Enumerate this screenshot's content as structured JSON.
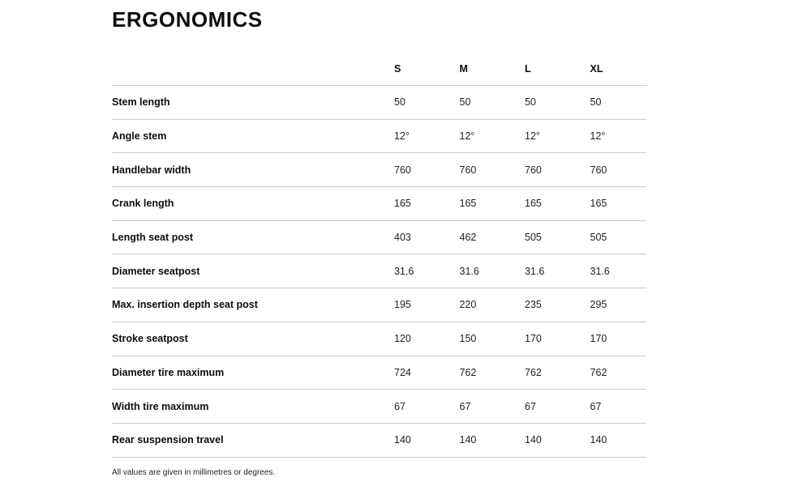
{
  "page": {
    "title": "ERGONOMICS",
    "footnote": "All values are given in millimetres or degrees."
  },
  "table": {
    "columns": [
      "S",
      "M",
      "L",
      "XL"
    ],
    "rows": [
      {
        "label": "Stem length",
        "values": [
          "50",
          "50",
          "50",
          "50"
        ]
      },
      {
        "label": "Angle stem",
        "values": [
          "12°",
          "12°",
          "12°",
          "12°"
        ]
      },
      {
        "label": "Handlebar width",
        "values": [
          "760",
          "760",
          "760",
          "760"
        ]
      },
      {
        "label": "Crank length",
        "values": [
          "165",
          "165",
          "165",
          "165"
        ]
      },
      {
        "label": "Length seat post",
        "values": [
          "403",
          "462",
          "505",
          "505"
        ]
      },
      {
        "label": "Diameter seatpost",
        "values": [
          "31.6",
          "31.6",
          "31.6",
          "31.6"
        ]
      },
      {
        "label": "Max. insertion depth seat post",
        "values": [
          "195",
          "220",
          "235",
          "295"
        ]
      },
      {
        "label": "Stroke seatpost",
        "values": [
          "120",
          "150",
          "170",
          "170"
        ]
      },
      {
        "label": "Diameter tire maximum",
        "values": [
          "724",
          "762",
          "762",
          "762"
        ]
      },
      {
        "label": "Width tire maximum",
        "values": [
          "67",
          "67",
          "67",
          "67"
        ]
      },
      {
        "label": "Rear suspension travel",
        "values": [
          "140",
          "140",
          "140",
          "140"
        ]
      }
    ]
  },
  "colors": {
    "text": "#0d0d0d",
    "value_text": "#1f1f1f",
    "divider": "#c9c9c9",
    "background": "#ffffff"
  },
  "chart_data": {
    "type": "table",
    "title": "ERGONOMICS",
    "columns": [
      "S",
      "M",
      "L",
      "XL"
    ],
    "rows": [
      {
        "label": "Stem length",
        "values": [
          "50",
          "50",
          "50",
          "50"
        ]
      },
      {
        "label": "Angle stem",
        "values": [
          "12°",
          "12°",
          "12°",
          "12°"
        ]
      },
      {
        "label": "Handlebar width",
        "values": [
          "760",
          "760",
          "760",
          "760"
        ]
      },
      {
        "label": "Crank length",
        "values": [
          "165",
          "165",
          "165",
          "165"
        ]
      },
      {
        "label": "Length seat post",
        "values": [
          "403",
          "462",
          "505",
          "505"
        ]
      },
      {
        "label": "Diameter seatpost",
        "values": [
          "31.6",
          "31.6",
          "31.6",
          "31.6"
        ]
      },
      {
        "label": "Max. insertion depth seat post",
        "values": [
          "195",
          "220",
          "235",
          "295"
        ]
      },
      {
        "label": "Stroke seatpost",
        "values": [
          "120",
          "150",
          "170",
          "170"
        ]
      },
      {
        "label": "Diameter tire maximum",
        "values": [
          "724",
          "762",
          "762",
          "762"
        ]
      },
      {
        "label": "Width tire maximum",
        "values": [
          "67",
          "67",
          "67",
          "67"
        ]
      },
      {
        "label": "Rear suspension travel",
        "values": [
          "140",
          "140",
          "140",
          "140"
        ]
      }
    ],
    "footnote": "All values are given in millimetres or degrees."
  }
}
